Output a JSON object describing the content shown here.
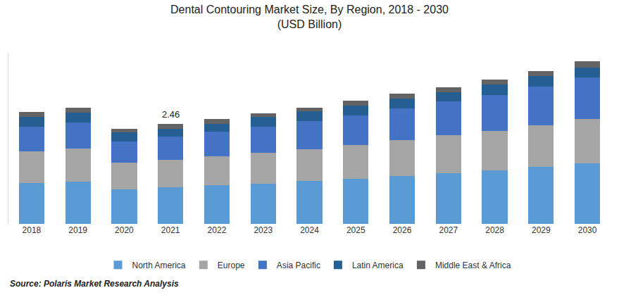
{
  "chart_data": {
    "type": "bar",
    "stacked": true,
    "title": "Dental Contouring Market Size, By Region, 2018 - 2030",
    "subtitle": "(USD Billion)",
    "source": "Source: Polaris Market Research Analysis",
    "categories": [
      "2018",
      "2019",
      "2020",
      "2021",
      "2022",
      "2023",
      "2024",
      "2025",
      "2026",
      "2027",
      "2028",
      "2029",
      "2030"
    ],
    "series": [
      {
        "name": "North America",
        "color": "#5b9bd5",
        "values": [
          1.0,
          1.04,
          0.85,
          0.9,
          0.95,
          0.99,
          1.06,
          1.11,
          1.18,
          1.25,
          1.32,
          1.4,
          1.49
        ]
      },
      {
        "name": "Europe",
        "color": "#a5a5a5",
        "values": [
          0.78,
          0.81,
          0.66,
          0.68,
          0.71,
          0.76,
          0.78,
          0.83,
          0.87,
          0.92,
          0.97,
          1.02,
          1.09
        ]
      },
      {
        "name": "Asia Pacific",
        "color": "#4472c4",
        "values": [
          0.61,
          0.64,
          0.52,
          0.57,
          0.61,
          0.64,
          0.69,
          0.73,
          0.78,
          0.83,
          0.88,
          0.95,
          1.02
        ]
      },
      {
        "name": "Latin America",
        "color": "#255e91",
        "values": [
          0.24,
          0.24,
          0.21,
          0.19,
          0.19,
          0.23,
          0.23,
          0.23,
          0.24,
          0.24,
          0.26,
          0.26,
          0.24
        ]
      },
      {
        "name": "Middle East & Africa",
        "color": "#636363",
        "values": [
          0.12,
          0.12,
          0.1,
          0.12,
          0.12,
          0.1,
          0.1,
          0.12,
          0.12,
          0.12,
          0.12,
          0.12,
          0.16
        ]
      }
    ],
    "annotations": [
      {
        "category": "2021",
        "value": 2.46,
        "text": "2.46"
      }
    ],
    "ylim": [
      0,
      4.2
    ],
    "yticks": [],
    "tick_labels": "x",
    "grid": false,
    "legend": "bottom"
  }
}
